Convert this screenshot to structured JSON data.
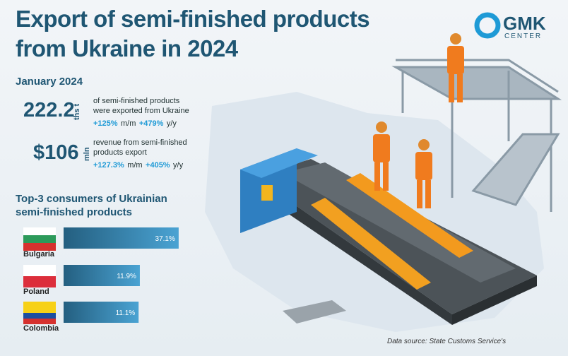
{
  "header": {
    "title_line1": "Export of semi-finished products",
    "title_line2": "from Ukraine in 2024",
    "logo_main": "GMK",
    "logo_sub": "CENTER"
  },
  "period": "January 2024",
  "stats": [
    {
      "value": "222.2",
      "unit": "ths t",
      "line1": "of semi-finished products",
      "line2": "were exported from Ukraine",
      "mm": "+125%",
      "mm_unit": "m/m",
      "yy": "+479%",
      "yy_unit": "y/y"
    },
    {
      "value": "$106",
      "unit": "mln",
      "line1": "revenue from semi-finished",
      "line2": "products export",
      "mm": "+127.3%",
      "mm_unit": "m/m",
      "yy": "+405%",
      "yy_unit": "y/y"
    }
  ],
  "chart_data": {
    "type": "bar",
    "orientation": "horizontal",
    "title": "Top-3 consumers of Ukrainian semi-finished products",
    "categories": [
      "Bulgaria",
      "Poland",
      "Colombia"
    ],
    "values": [
      37.1,
      11.9,
      11.1
    ],
    "value_labels": [
      "37.1%",
      "11.9%",
      "11.1%"
    ],
    "color": "#2f77a0"
  },
  "source": "Data source: State Customs Service's"
}
